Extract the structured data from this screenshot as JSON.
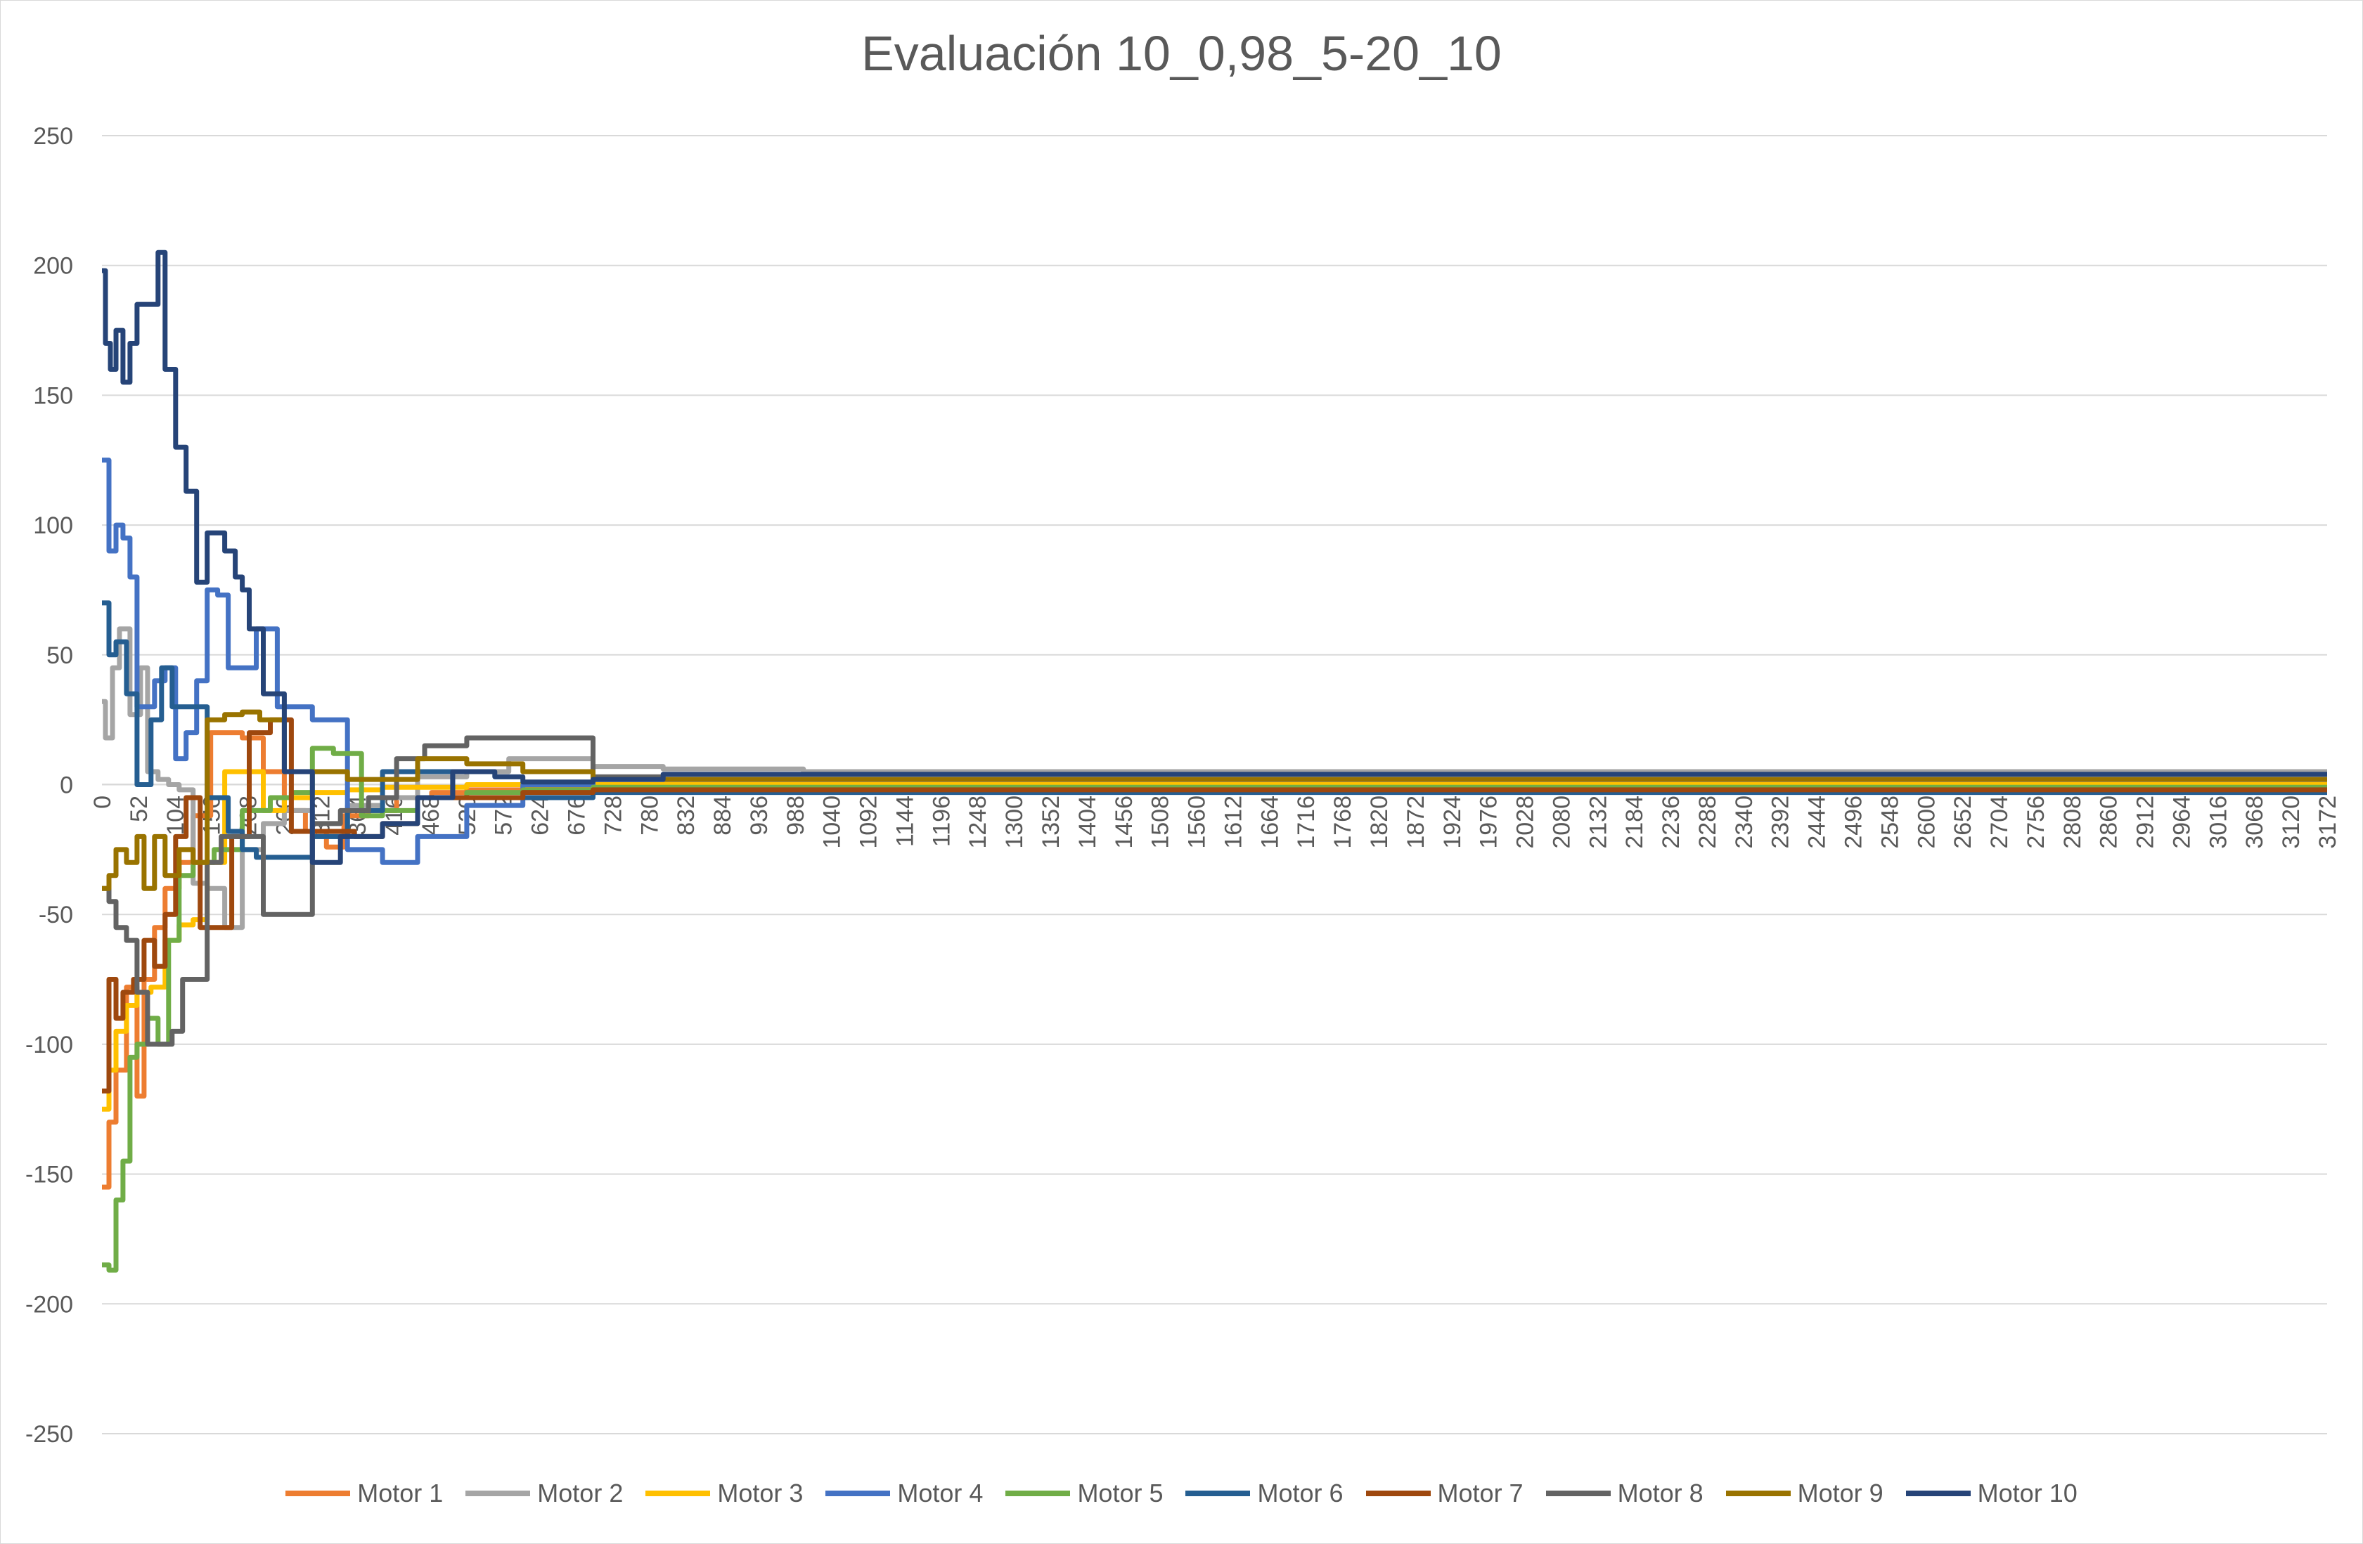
{
  "chart_data": {
    "type": "line",
    "title": "Evaluación 10_0,98_5-20_10",
    "xlabel": "",
    "ylabel": "",
    "ylim": [
      -250,
      250
    ],
    "yticks": [
      250,
      200,
      150,
      100,
      50,
      0,
      -50,
      -100,
      -150,
      -200,
      -250
    ],
    "xlim": [
      0,
      3172
    ],
    "xticks": [
      0,
      52,
      104,
      156,
      208,
      260,
      312,
      364,
      416,
      468,
      520,
      572,
      624,
      676,
      728,
      780,
      832,
      884,
      936,
      988,
      1040,
      1092,
      1144,
      1196,
      1248,
      1300,
      1352,
      1404,
      1456,
      1508,
      1560,
      1612,
      1664,
      1716,
      1768,
      1820,
      1872,
      1924,
      1976,
      2028,
      2080,
      2132,
      2184,
      2236,
      2288,
      2340,
      2392,
      2444,
      2496,
      2548,
      2600,
      2652,
      2704,
      2756,
      2808,
      2860,
      2912,
      2964,
      3016,
      3068,
      3120,
      3172
    ],
    "grid": "horizontal",
    "legend": "bottom",
    "series": [
      {
        "name": "Motor 1",
        "color": "#ED7D31",
        "x": [
          0,
          10,
          20,
          35,
          50,
          60,
          75,
          90,
          110,
          130,
          155,
          175,
          200,
          230,
          260,
          290,
          320,
          345,
          380,
          420,
          470,
          520,
          600,
          700,
          800,
          1000,
          3172
        ],
        "y": [
          -155,
          -130,
          -110,
          -78,
          -120,
          -75,
          -55,
          -40,
          -30,
          -12,
          20,
          20,
          18,
          5,
          -10,
          -18,
          -24,
          -12,
          -10,
          -5,
          -3,
          -2,
          -1,
          -0.5,
          0,
          0,
          0
        ]
      },
      {
        "name": "Motor 2",
        "color": "#A5A5A5",
        "x": [
          0,
          5,
          15,
          25,
          40,
          55,
          65,
          80,
          95,
          110,
          130,
          150,
          175,
          200,
          230,
          260,
          300,
          350,
          400,
          450,
          520,
          580,
          640,
          700,
          800,
          1000,
          3172
        ],
        "y": [
          32,
          18,
          45,
          60,
          27,
          45,
          5,
          2,
          0,
          -2,
          -38,
          -40,
          -55,
          -25,
          -15,
          -10,
          -20,
          -8,
          -5,
          3,
          5,
          10,
          10,
          7,
          6,
          5,
          5
        ]
      },
      {
        "name": "Motor 3",
        "color": "#FFC000",
        "x": [
          0,
          10,
          20,
          35,
          50,
          70,
          90,
          110,
          130,
          150,
          175,
          200,
          230,
          260,
          300,
          350,
          400,
          450,
          520,
          600,
          700,
          800,
          1000,
          3172
        ],
        "y": [
          -125,
          -110,
          -95,
          -85,
          -80,
          -78,
          -60,
          -54,
          -52,
          -30,
          5,
          5,
          -10,
          -5,
          -3,
          -2,
          -1,
          -1,
          0,
          0,
          0,
          0,
          0,
          0
        ]
      },
      {
        "name": "Motor 4",
        "color": "#4472C4",
        "x": [
          0,
          10,
          20,
          30,
          40,
          50,
          60,
          75,
          90,
          105,
          120,
          135,
          150,
          165,
          180,
          200,
          220,
          250,
          300,
          350,
          400,
          450,
          520,
          600,
          700,
          800,
          1000,
          3172
        ],
        "y": [
          125,
          90,
          100,
          95,
          80,
          30,
          30,
          40,
          45,
          10,
          20,
          40,
          75,
          73,
          45,
          45,
          60,
          30,
          25,
          -25,
          -30,
          -20,
          -8,
          0,
          2,
          2,
          2,
          2
        ]
      },
      {
        "name": "Motor 5",
        "color": "#70AD47",
        "x": [
          0,
          10,
          20,
          30,
          40,
          50,
          65,
          80,
          95,
          110,
          130,
          160,
          200,
          240,
          270,
          300,
          330,
          370,
          400,
          450,
          520,
          600,
          700,
          800,
          1000,
          3172
        ],
        "y": [
          -185,
          -187,
          -160,
          -145,
          -105,
          -100,
          -90,
          -100,
          -60,
          -35,
          -30,
          -25,
          -10,
          -5,
          -3,
          14,
          12,
          -12,
          -10,
          -5,
          -3,
          -2,
          -1,
          -1,
          -1,
          -1
        ]
      },
      {
        "name": "Motor 6",
        "color": "#255E91",
        "x": [
          0,
          10,
          20,
          35,
          50,
          60,
          70,
          85,
          100,
          120,
          150,
          180,
          200,
          220,
          250,
          300,
          350,
          400,
          450,
          500,
          600,
          700,
          800,
          1000,
          3172
        ],
        "y": [
          70,
          50,
          55,
          35,
          0,
          0,
          25,
          45,
          30,
          30,
          -5,
          -18,
          -25,
          -28,
          -28,
          -20,
          -10,
          5,
          5,
          -5,
          -5,
          -3,
          -3,
          -3,
          -3
        ]
      },
      {
        "name": "Motor 7",
        "color": "#9E480E",
        "x": [
          0,
          10,
          20,
          30,
          45,
          60,
          75,
          90,
          105,
          120,
          140,
          160,
          185,
          210,
          240,
          270,
          300,
          330,
          360,
          400,
          450,
          520,
          600,
          700,
          800,
          1000,
          3172
        ],
        "y": [
          -118,
          -75,
          -90,
          -80,
          -75,
          -60,
          -70,
          -50,
          -20,
          -5,
          -55,
          -55,
          -20,
          20,
          25,
          -18,
          -18,
          -18,
          -20,
          -15,
          -5,
          -5,
          -3,
          -2,
          -2,
          -2,
          -2
        ]
      },
      {
        "name": "Motor 8",
        "color": "#636363",
        "x": [
          0,
          10,
          20,
          35,
          50,
          65,
          80,
          100,
          115,
          130,
          150,
          170,
          190,
          210,
          230,
          260,
          300,
          340,
          380,
          420,
          460,
          520,
          600,
          700,
          800,
          1000,
          3172
        ],
        "y": [
          -40,
          -45,
          -55,
          -60,
          -80,
          -100,
          -100,
          -95,
          -75,
          -75,
          -30,
          -20,
          -20,
          -20,
          -50,
          -50,
          -15,
          -10,
          -5,
          10,
          15,
          18,
          18,
          3,
          2,
          2,
          2
        ]
      },
      {
        "name": "Motor 9",
        "color": "#997300",
        "x": [
          0,
          10,
          20,
          35,
          50,
          60,
          75,
          90,
          110,
          130,
          150,
          175,
          200,
          225,
          260,
          300,
          350,
          400,
          450,
          520,
          600,
          700,
          800,
          1000,
          3172
        ],
        "y": [
          -40,
          -35,
          -25,
          -30,
          -20,
          -40,
          -20,
          -35,
          -25,
          -30,
          25,
          27,
          28,
          25,
          5,
          5,
          2,
          2,
          10,
          8,
          5,
          2,
          2,
          2,
          2
        ]
      },
      {
        "name": "Motor 10",
        "color": "#264478",
        "x": [
          0,
          5,
          12,
          20,
          30,
          40,
          50,
          60,
          70,
          80,
          90,
          105,
          120,
          135,
          150,
          160,
          175,
          190,
          200,
          210,
          230,
          260,
          300,
          340,
          400,
          450,
          500,
          560,
          600,
          640,
          700,
          800,
          1000,
          3172
        ],
        "y": [
          198,
          170,
          160,
          175,
          155,
          170,
          185,
          185,
          185,
          205,
          160,
          130,
          113,
          78,
          97,
          97,
          90,
          80,
          75,
          60,
          35,
          5,
          -30,
          -20,
          -15,
          -5,
          5,
          3,
          1,
          1,
          2,
          4,
          4,
          4
        ]
      }
    ]
  }
}
